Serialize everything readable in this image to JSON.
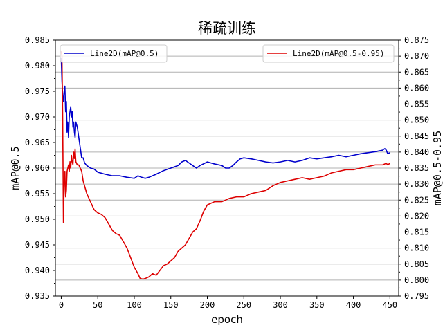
{
  "chart_data": {
    "type": "line",
    "title": "稀疏训练",
    "xlabel": "epoch",
    "ylabel": "mAP@0.5",
    "y2label": "mAP@0.5-0.95",
    "xlim": [
      -8,
      462
    ],
    "ylim": [
      0.935,
      0.985
    ],
    "y2lim": [
      0.795,
      0.875
    ],
    "xticks": [
      "0",
      "50",
      "100",
      "150",
      "200",
      "250",
      "300",
      "350",
      "400",
      "450"
    ],
    "yticks": [
      "0.935",
      "0.940",
      "0.945",
      "0.950",
      "0.955",
      "0.960",
      "0.965",
      "0.970",
      "0.975",
      "0.980",
      "0.985"
    ],
    "y2ticks": [
      "0.795",
      "0.800",
      "0.805",
      "0.810",
      "0.815",
      "0.820",
      "0.825",
      "0.830",
      "0.835",
      "0.840",
      "0.845",
      "0.850",
      "0.855",
      "0.860",
      "0.865",
      "0.870",
      "0.875"
    ],
    "grid": "horizontal",
    "legend_left_position": "top-left",
    "legend_right_position": "top-right",
    "series": [
      {
        "name": "Line2D(mAP@0.5)",
        "axis": "left",
        "color": "#0000cc",
        "x": [
          0,
          1,
          2,
          3,
          4,
          5,
          6,
          7,
          8,
          9,
          10,
          11,
          12,
          13,
          14,
          15,
          16,
          17,
          18,
          19,
          20,
          22,
          24,
          26,
          28,
          30,
          32,
          35,
          40,
          45,
          50,
          60,
          70,
          80,
          90,
          100,
          105,
          110,
          115,
          120,
          130,
          140,
          150,
          160,
          165,
          170,
          175,
          180,
          185,
          190,
          200,
          210,
          220,
          225,
          230,
          235,
          240,
          245,
          250,
          260,
          270,
          280,
          290,
          300,
          310,
          320,
          330,
          340,
          350,
          360,
          370,
          380,
          390,
          400,
          410,
          420,
          430,
          440,
          443,
          445,
          447,
          450
        ],
        "values": [
          0.9815,
          0.977,
          0.974,
          0.973,
          0.975,
          0.976,
          0.971,
          0.973,
          0.967,
          0.969,
          0.966,
          0.97,
          0.971,
          0.972,
          0.97,
          0.971,
          0.968,
          0.969,
          0.967,
          0.966,
          0.969,
          0.968,
          0.966,
          0.964,
          0.962,
          0.962,
          0.961,
          0.9605,
          0.96,
          0.9598,
          0.9592,
          0.9588,
          0.9585,
          0.9585,
          0.9582,
          0.958,
          0.9585,
          0.9582,
          0.958,
          0.9582,
          0.9588,
          0.9595,
          0.96,
          0.9605,
          0.9612,
          0.9615,
          0.961,
          0.9605,
          0.96,
          0.9605,
          0.9612,
          0.9608,
          0.9605,
          0.96,
          0.96,
          0.9605,
          0.9612,
          0.9618,
          0.962,
          0.9618,
          0.9615,
          0.9612,
          0.961,
          0.9612,
          0.9615,
          0.9612,
          0.9615,
          0.962,
          0.9618,
          0.962,
          0.9622,
          0.9625,
          0.9622,
          0.9625,
          0.9628,
          0.963,
          0.9632,
          0.9635,
          0.9638,
          0.9635,
          0.9628,
          0.963
        ]
      },
      {
        "name": "Line2D(mAP@0.5-0.95)",
        "axis": "right",
        "color": "#dd0000",
        "x": [
          0,
          1,
          2,
          3,
          4,
          5,
          6,
          7,
          8,
          9,
          10,
          11,
          12,
          13,
          14,
          15,
          16,
          17,
          18,
          19,
          20,
          22,
          24,
          26,
          28,
          30,
          35,
          40,
          45,
          50,
          55,
          60,
          65,
          70,
          75,
          80,
          85,
          90,
          95,
          100,
          105,
          108,
          112,
          115,
          120,
          125,
          130,
          135,
          140,
          145,
          150,
          155,
          160,
          165,
          170,
          175,
          180,
          185,
          190,
          195,
          200,
          205,
          210,
          220,
          230,
          240,
          250,
          260,
          270,
          280,
          290,
          300,
          310,
          320,
          330,
          340,
          350,
          360,
          370,
          380,
          390,
          400,
          410,
          420,
          430,
          440,
          445,
          447,
          450
        ],
        "values": [
          0.8715,
          0.87,
          0.85,
          0.818,
          0.83,
          0.834,
          0.826,
          0.828,
          0.834,
          0.835,
          0.836,
          0.834,
          0.837,
          0.835,
          0.839,
          0.837,
          0.836,
          0.84,
          0.838,
          0.841,
          0.837,
          0.836,
          0.836,
          0.835,
          0.834,
          0.831,
          0.827,
          0.8245,
          0.822,
          0.821,
          0.8205,
          0.8195,
          0.8175,
          0.8155,
          0.8145,
          0.814,
          0.812,
          0.81,
          0.807,
          0.804,
          0.802,
          0.8005,
          0.8003,
          0.8005,
          0.801,
          0.802,
          0.8015,
          0.803,
          0.8045,
          0.805,
          0.806,
          0.807,
          0.809,
          0.81,
          0.811,
          0.813,
          0.815,
          0.816,
          0.8185,
          0.8215,
          0.8235,
          0.824,
          0.8245,
          0.8245,
          0.8255,
          0.826,
          0.826,
          0.827,
          0.8275,
          0.828,
          0.8295,
          0.8305,
          0.831,
          0.8315,
          0.832,
          0.8315,
          0.832,
          0.8325,
          0.8335,
          0.834,
          0.8345,
          0.8345,
          0.835,
          0.8355,
          0.836,
          0.836,
          0.8365,
          0.836,
          0.8365
        ]
      }
    ]
  }
}
